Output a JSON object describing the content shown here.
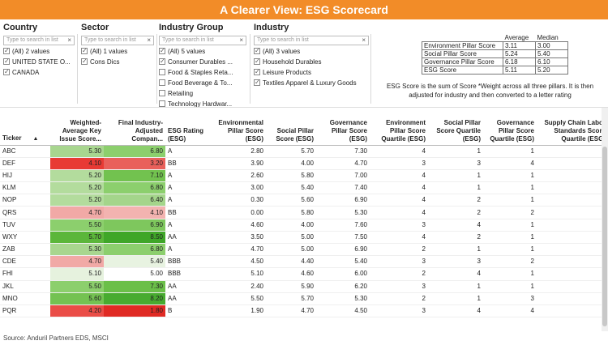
{
  "title": "A Clearer View: ESG Scorecard",
  "filters": [
    {
      "label": "Country",
      "placeholder": "Type to search in list",
      "options": [
        {
          "label": "(All) 2 values",
          "checked": true
        },
        {
          "label": "UNITED STATE O...",
          "checked": true
        },
        {
          "label": "CANADA",
          "checked": true
        }
      ]
    },
    {
      "label": "Sector",
      "placeholder": "Type to search in list",
      "options": [
        {
          "label": "(All) 1 values",
          "checked": true
        },
        {
          "label": "Cons Dics",
          "checked": true
        }
      ]
    },
    {
      "label": "Industry Group",
      "placeholder": "Type to search in list",
      "options": [
        {
          "label": "(All) 5 values",
          "checked": true
        },
        {
          "label": "Consumer Durables ...",
          "checked": true
        },
        {
          "label": "Food & Staples Reta...",
          "checked": false
        },
        {
          "label": "Food Beverage & To...",
          "checked": false
        },
        {
          "label": "Retailing",
          "checked": false
        },
        {
          "label": "Technology Hardwar...",
          "checked": false
        }
      ]
    },
    {
      "label": "Industry",
      "placeholder": "Type to search in list",
      "options": [
        {
          "label": "(All) 3 values",
          "checked": true
        },
        {
          "label": "Household Durables",
          "checked": true
        },
        {
          "label": "Leisure Products",
          "checked": true
        },
        {
          "label": "Textiles Apparel & Luxury Goods",
          "checked": true
        }
      ]
    }
  ],
  "stats": {
    "headers": [
      "Average",
      "Median"
    ],
    "rows": [
      {
        "label": "Environment Pillar Score",
        "average": "3.11",
        "median": "3.00"
      },
      {
        "label": "Social Pillar Score",
        "average": "5.24",
        "median": "5.40"
      },
      {
        "label": "Governance Pillar Score",
        "average": "6.18",
        "median": "6.10"
      },
      {
        "label": "ESG Score",
        "average": "5.11",
        "median": "5.20"
      }
    ]
  },
  "note": "ESG Score is the sum of Score *Weight across all three pillars. It is then adjusted for industry and then converted to a letter rating",
  "table": {
    "columns": [
      "Ticker",
      "Weighted-Average Key Issue Score...",
      "Final Industry-Adjusted Compan...",
      "ESG Rating (ESG)",
      "Environmental Pillar Score (ESG)",
      "Social Pillar Score (ESG)",
      "Governance Pillar Score (ESG)",
      "Environment Pillar Score Quartile (ESG)",
      "Social Pillar Score Quartile (ESG)",
      "Governance Pillar Score Quartile (ESG)",
      "Supply Chain Labor Standards Score Quartile (ESG)"
    ],
    "sort_indicator": "▲",
    "rows": [
      {
        "ticker": "ABC",
        "wak": "5.30",
        "wak_color": "#a8d68f",
        "fia": "6.80",
        "fia_color": "#8ccf6d",
        "rating": "A",
        "env": "2.80",
        "soc": "5.70",
        "gov": "7.30",
        "envq": "4",
        "socq": "1",
        "govq": "1",
        "scq": "1"
      },
      {
        "ticker": "DEF",
        "wak": "4.10",
        "wak_color": "#e83a34",
        "fia": "3.20",
        "fia_color": "#e9605b",
        "rating": "BB",
        "env": "3.90",
        "soc": "4.00",
        "gov": "4.70",
        "envq": "3",
        "socq": "3",
        "govq": "4",
        "scq": "3"
      },
      {
        "ticker": "HIJ",
        "wak": "5.20",
        "wak_color": "#b3dc9d",
        "fia": "7.10",
        "fia_color": "#72c24f",
        "rating": "A",
        "env": "2.60",
        "soc": "5.80",
        "gov": "7.00",
        "envq": "4",
        "socq": "1",
        "govq": "1",
        "scq": "1"
      },
      {
        "ticker": "KLM",
        "wak": "5.20",
        "wak_color": "#b3dc9d",
        "fia": "6.80",
        "fia_color": "#8ccf6d",
        "rating": "A",
        "env": "3.00",
        "soc": "5.40",
        "gov": "7.40",
        "envq": "4",
        "socq": "1",
        "govq": "1",
        "scq": "1"
      },
      {
        "ticker": "NOP",
        "wak": "5.20",
        "wak_color": "#b3dc9d",
        "fia": "6.40",
        "fia_color": "#a4d58b",
        "rating": "A",
        "env": "0.30",
        "soc": "5.60",
        "gov": "6.90",
        "envq": "4",
        "socq": "2",
        "govq": "1",
        "scq": "1"
      },
      {
        "ticker": "QRS",
        "wak": "4.70",
        "wak_color": "#f1a9a6",
        "fia": "4.10",
        "fia_color": "#f3b3b0",
        "rating": "BB",
        "env": "0.00",
        "soc": "5.80",
        "gov": "5.30",
        "envq": "4",
        "socq": "2",
        "govq": "2",
        "scq": "1"
      },
      {
        "ticker": "TUV",
        "wak": "5.50",
        "wak_color": "#8ccf6d",
        "fia": "6.90",
        "fia_color": "#7ec75d",
        "rating": "A",
        "env": "4.60",
        "soc": "4.00",
        "gov": "7.60",
        "envq": "3",
        "socq": "4",
        "govq": "1",
        "scq": "3"
      },
      {
        "ticker": "WXY",
        "wak": "5.70",
        "wak_color": "#5bb63a",
        "fia": "8.50",
        "fia_color": "#3fa628",
        "rating": "AA",
        "env": "3.50",
        "soc": "5.00",
        "gov": "7.50",
        "envq": "4",
        "socq": "2",
        "govq": "1",
        "scq": "1"
      },
      {
        "ticker": "ZAB",
        "wak": "5.30",
        "wak_color": "#a8d68f",
        "fia": "6.80",
        "fia_color": "#8ccf6d",
        "rating": "A",
        "env": "4.70",
        "soc": "5.00",
        "gov": "6.90",
        "envq": "2",
        "socq": "1",
        "govq": "1",
        "scq": "1"
      },
      {
        "ticker": "CDE",
        "wak": "4.70",
        "wak_color": "#f1a9a6",
        "fia": "5.40",
        "fia_color": "#e8f3e1",
        "rating": "BBB",
        "env": "4.50",
        "soc": "4.40",
        "gov": "5.40",
        "envq": "3",
        "socq": "3",
        "govq": "2",
        "scq": "1"
      },
      {
        "ticker": "FHI",
        "wak": "5.10",
        "wak_color": "#e6f2de",
        "fia": "5.00",
        "fia_color": "#ffffff",
        "rating": "BBB",
        "env": "5.10",
        "soc": "4.60",
        "gov": "6.00",
        "envq": "2",
        "socq": "4",
        "govq": "1",
        "scq": "1"
      },
      {
        "ticker": "JKL",
        "wak": "5.50",
        "wak_color": "#8ccf6d",
        "fia": "7.30",
        "fia_color": "#6bbf49",
        "rating": "AA",
        "env": "2.40",
        "soc": "5.90",
        "gov": "6.20",
        "envq": "3",
        "socq": "1",
        "govq": "1",
        "scq": "1"
      },
      {
        "ticker": "MNO",
        "wak": "5.60",
        "wak_color": "#74c252",
        "fia": "8.20",
        "fia_color": "#48ab30",
        "rating": "AA",
        "env": "5.50",
        "soc": "5.70",
        "gov": "5.30",
        "envq": "2",
        "socq": "1",
        "govq": "3",
        "scq": "1"
      },
      {
        "ticker": "PQR",
        "wak": "4.20",
        "wak_color": "#ea4d47",
        "fia": "1.80",
        "fia_color": "#e02a24",
        "rating": "B",
        "env": "1.90",
        "soc": "4.70",
        "gov": "4.50",
        "envq": "3",
        "socq": "4",
        "govq": "4",
        "scq": "3"
      }
    ]
  },
  "source": "Source: Anduril Partners EDS, MSCI"
}
